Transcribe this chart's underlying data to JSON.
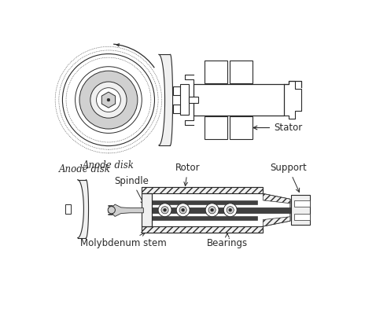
{
  "bg_color": "#ffffff",
  "line_color": "#2a2a2a",
  "fill_light": "#f0f0f0",
  "fill_mid": "#d0d0d0",
  "fill_dark": "#404040",
  "fill_black": "#101010",
  "labels": {
    "anode_disk": "Anode disk",
    "stator": "Stator",
    "spindle": "Spindle",
    "rotor": "Rotor",
    "support": "Support",
    "moly_stem": "Molybdenum stem",
    "bearings": "Bearings"
  },
  "fontsize_label": 8.5
}
